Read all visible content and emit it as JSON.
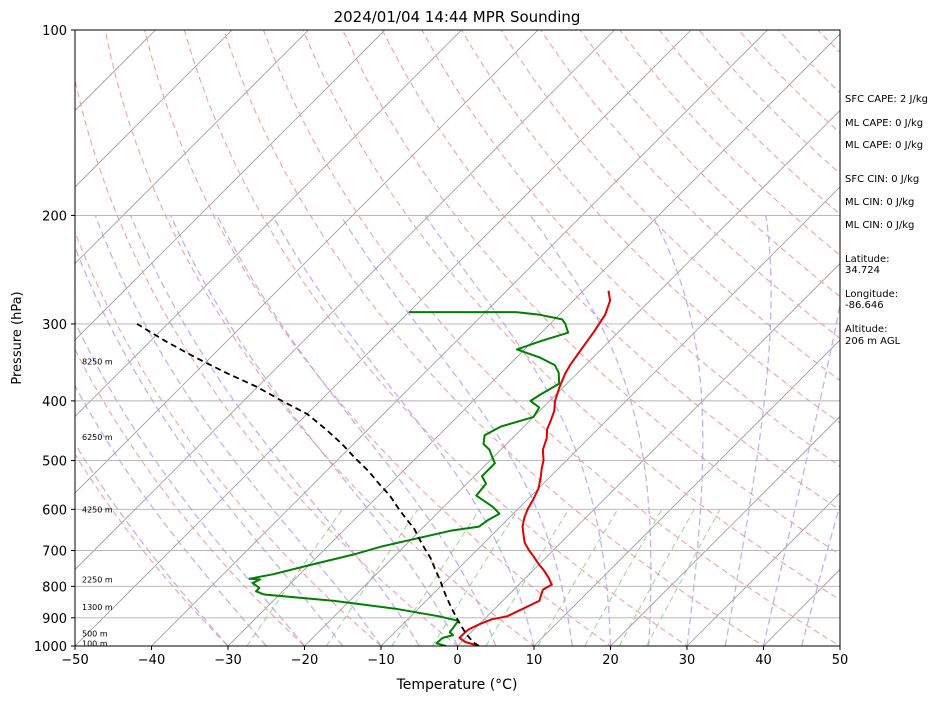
{
  "chart_data": {
    "type": "line",
    "subtype": "skew-t log-p sounding",
    "title": "2024/01/04 14:44 MPR Sounding",
    "xlabel": "Temperature (°C)",
    "ylabel": "Pressure (hPa)",
    "xlim": [
      -50,
      50
    ],
    "ylim": [
      1000,
      100
    ],
    "y_scale": "log",
    "x_ticks": [
      "−50",
      "−40",
      "−30",
      "−20",
      "−10",
      "0",
      "10",
      "20",
      "30",
      "40",
      "50"
    ],
    "y_ticks": [
      "1000",
      "900",
      "800",
      "700",
      "600",
      "500",
      "400",
      "300",
      "200",
      "100"
    ],
    "grid": true,
    "height_labels": [
      {
        "text": "100 m",
        "p": 990
      },
      {
        "text": "500 m",
        "p": 955
      },
      {
        "text": "1300 m",
        "p": 865
      },
      {
        "text": "2250 m",
        "p": 780
      },
      {
        "text": "4250 m",
        "p": 600
      },
      {
        "text": "6250 m",
        "p": 458
      },
      {
        "text": "8250 m",
        "p": 345
      }
    ],
    "series": [
      {
        "key": "temperature",
        "color": "#e00000",
        "points": [
          [
            2.8,
            1000
          ],
          [
            0.5,
            985
          ],
          [
            -0.8,
            970
          ],
          [
            -0.8,
            950
          ],
          [
            -0.7,
            940
          ],
          [
            0.1,
            920
          ],
          [
            1.0,
            905
          ],
          [
            2.6,
            895
          ],
          [
            4.8,
            845
          ],
          [
            3.8,
            810
          ],
          [
            4.3,
            795
          ],
          [
            3.0,
            775
          ],
          [
            1.5,
            755
          ],
          [
            -0.2,
            735
          ],
          [
            -1.8,
            715
          ],
          [
            -3.1,
            700
          ],
          [
            -4.7,
            680
          ],
          [
            -5.9,
            660
          ],
          [
            -7.1,
            640
          ],
          [
            -8.0,
            620
          ],
          [
            -8.7,
            600
          ],
          [
            -9.2,
            580
          ],
          [
            -10.0,
            555
          ],
          [
            -11.3,
            530
          ],
          [
            -12.2,
            515
          ],
          [
            -13.0,
            500
          ],
          [
            -14.5,
            480
          ],
          [
            -15.5,
            460
          ],
          [
            -16.6,
            445
          ],
          [
            -17.3,
            430
          ],
          [
            -18.1,
            415
          ],
          [
            -19.3,
            400
          ],
          [
            -20.5,
            380
          ],
          [
            -21.6,
            360
          ],
          [
            -22.0,
            350
          ],
          [
            -22.6,
            330
          ],
          [
            -23.2,
            310
          ],
          [
            -24.0,
            290
          ],
          [
            -25.2,
            275
          ],
          [
            -26.7,
            265
          ]
        ]
      },
      {
        "key": "dewpoint",
        "color": "#008000",
        "points": [
          [
            -1.5,
            1000
          ],
          [
            -3.1,
            990
          ],
          [
            -3.0,
            970
          ],
          [
            -2.0,
            960
          ],
          [
            -2.8,
            950
          ],
          [
            -3.2,
            910
          ],
          [
            -6.3,
            895
          ],
          [
            -13.0,
            870
          ],
          [
            -22.0,
            845
          ],
          [
            -32.0,
            825
          ],
          [
            -33.5,
            815
          ],
          [
            -33.5,
            805
          ],
          [
            -35.0,
            790
          ],
          [
            -34.5,
            780
          ],
          [
            -36.0,
            778
          ],
          [
            -33.5,
            765
          ],
          [
            -30.0,
            740
          ],
          [
            -25.5,
            710
          ],
          [
            -23.0,
            690
          ],
          [
            -16.0,
            650
          ],
          [
            -12.8,
            640
          ],
          [
            -12.5,
            625
          ],
          [
            -11.8,
            610
          ],
          [
            -13.5,
            595
          ],
          [
            -17.2,
            570
          ],
          [
            -17.5,
            545
          ],
          [
            -19.0,
            530
          ],
          [
            -19.0,
            505
          ],
          [
            -20.0,
            495
          ],
          [
            -21.5,
            480
          ],
          [
            -23.0,
            470
          ],
          [
            -24.0,
            455
          ],
          [
            -23.0,
            440
          ],
          [
            -20.0,
            425
          ],
          [
            -20.5,
            410
          ],
          [
            -22.5,
            400
          ],
          [
            -22.0,
            390
          ],
          [
            -21.0,
            375
          ],
          [
            -22.5,
            360
          ],
          [
            -24.0,
            350
          ],
          [
            -27.0,
            340
          ],
          [
            -31.0,
            330
          ],
          [
            -29.0,
            320
          ],
          [
            -26.5,
            310
          ],
          [
            -28.0,
            300
          ],
          [
            -29.0,
            295
          ],
          [
            -32.5,
            290
          ],
          [
            -36.0,
            287
          ],
          [
            -47.0,
            287
          ],
          [
            -50.0,
            287
          ]
        ]
      },
      {
        "key": "parcel",
        "color": "#000000",
        "points": [
          [
            2.8,
            1000
          ],
          [
            1.5,
            985
          ],
          [
            -0.5,
            955
          ],
          [
            -2.0,
            930
          ],
          [
            -3.5,
            905
          ],
          [
            -5.0,
            880
          ],
          [
            -6.5,
            855
          ],
          [
            -8.0,
            830
          ],
          [
            -9.5,
            805
          ],
          [
            -11.0,
            780
          ],
          [
            -13.0,
            750
          ],
          [
            -15.0,
            720
          ],
          [
            -17.0,
            695
          ],
          [
            -19.0,
            670
          ],
          [
            -21.0,
            645
          ],
          [
            -23.5,
            620
          ],
          [
            -26.0,
            595
          ],
          [
            -28.5,
            570
          ],
          [
            -31.5,
            545
          ],
          [
            -34.5,
            520
          ],
          [
            -38.0,
            495
          ],
          [
            -41.5,
            470
          ],
          [
            -45.5,
            445
          ],
          [
            -50.0,
            420
          ],
          [
            -55.0,
            400
          ],
          [
            -60.0,
            380
          ],
          [
            -66.0,
            360
          ],
          [
            -72.0,
            340
          ],
          [
            -78.0,
            320
          ],
          [
            -84.0,
            300
          ]
        ]
      }
    ]
  },
  "side_panel": {
    "sfc_cape": "SFC CAPE: 2 J/kg",
    "ml_cape_1": "ML CAPE: 0 J/kg",
    "ml_cape_2": "ML CAPE: 0 J/kg",
    "sfc_cin": "SFC CIN: 0 J/kg",
    "ml_cin_1": "ML CIN: 0 J/kg",
    "ml_cin_2": "ML CIN: 0 J/kg",
    "latitude_label": "Latitude:",
    "latitude_value": "34.724",
    "longitude_label": "Longitude:",
    "longitude_value": "-86.646",
    "altitude_label": "Altitude:",
    "altitude_value": "206 m AGL"
  }
}
